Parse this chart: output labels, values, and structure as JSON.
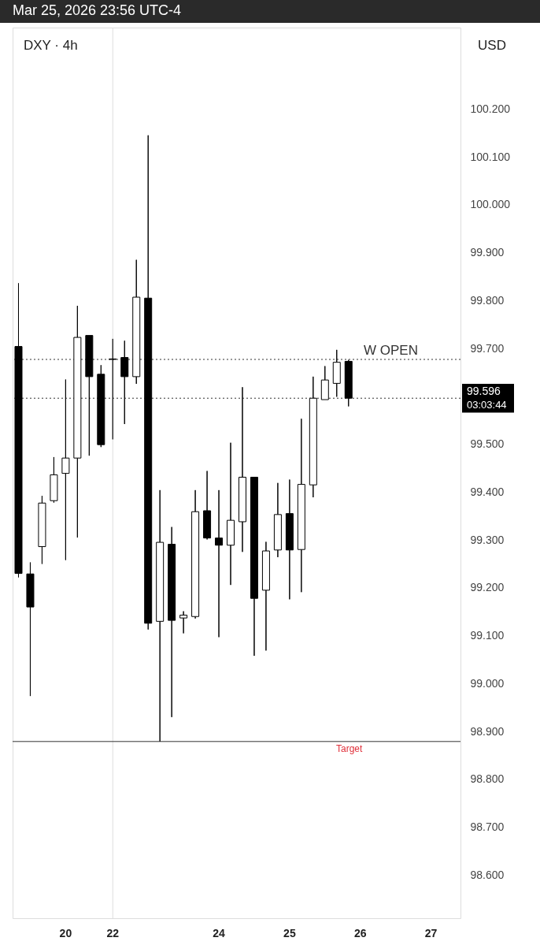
{
  "chart_data": {
    "type": "candlestick",
    "title": "DXY · 4h",
    "categories": [
      null,
      null,
      null,
      null,
      "20",
      null,
      null,
      null,
      "22",
      null,
      null,
      null,
      null,
      null,
      null,
      null,
      null,
      "24",
      null,
      null,
      null,
      null,
      null,
      "25",
      null,
      null,
      null,
      null,
      null,
      "26",
      null,
      null,
      null,
      null,
      null,
      "27",
      null,
      null
    ],
    "ohlc": [
      [
        99.704,
        99.836,
        99.222,
        99.23
      ],
      [
        99.229,
        99.253,
        98.974,
        99.16
      ],
      [
        99.286,
        99.392,
        99.25,
        99.377
      ],
      [
        99.382,
        99.473,
        99.378,
        99.436
      ],
      [
        99.439,
        99.635,
        99.258,
        99.471
      ],
      [
        99.471,
        99.789,
        99.305,
        99.723
      ],
      [
        99.727,
        99.727,
        99.476,
        99.641
      ],
      [
        99.646,
        99.665,
        99.494,
        99.499
      ],
      [
        99.678,
        99.72,
        99.51,
        99.677
      ],
      [
        99.681,
        99.716,
        99.542,
        99.641
      ],
      [
        99.641,
        99.885,
        99.626,
        99.807
      ],
      [
        99.805,
        100.145,
        99.113,
        99.126
      ],
      [
        99.13,
        99.404,
        98.879,
        99.295
      ],
      [
        99.291,
        99.327,
        98.93,
        99.132
      ],
      [
        99.137,
        99.151,
        99.105,
        99.143
      ],
      [
        99.14,
        99.404,
        99.136,
        99.359
      ],
      [
        99.361,
        99.444,
        99.301,
        99.304
      ],
      [
        99.304,
        99.404,
        99.097,
        99.289
      ],
      [
        99.289,
        99.503,
        99.206,
        99.341
      ],
      [
        99.338,
        99.619,
        99.275,
        99.431
      ],
      [
        99.431,
        99.431,
        99.058,
        99.178
      ],
      [
        99.195,
        99.296,
        99.069,
        99.277
      ],
      [
        99.279,
        99.419,
        99.264,
        99.353
      ],
      [
        99.355,
        99.426,
        99.176,
        99.279
      ],
      [
        99.28,
        99.553,
        99.191,
        99.416
      ],
      [
        99.415,
        99.641,
        99.389,
        99.596
      ],
      [
        99.593,
        99.663,
        99.593,
        99.634
      ],
      [
        99.627,
        99.697,
        99.599,
        99.671
      ],
      [
        99.673,
        99.676,
        99.579,
        99.596
      ],
      null,
      null,
      null,
      null,
      null,
      null,
      null,
      null,
      null
    ],
    "ylim": [
      98.51,
      100.37
    ],
    "yticks": [
      {
        "value": 98.6,
        "label": "98.600"
      },
      {
        "value": 98.7,
        "label": "98.700"
      },
      {
        "value": 98.8,
        "label": "98.800"
      },
      {
        "value": 98.9,
        "label": "98.900"
      },
      {
        "value": 99.0,
        "label": "99.000"
      },
      {
        "value": 99.1,
        "label": "99.100"
      },
      {
        "value": 99.2,
        "label": "99.200"
      },
      {
        "value": 99.3,
        "label": "99.300"
      },
      {
        "value": 99.4,
        "label": "99.400"
      },
      {
        "value": 99.5,
        "label": "99.500"
      },
      {
        "value": 99.7,
        "label": "99.700"
      },
      {
        "value": 99.8,
        "label": "99.800"
      },
      {
        "value": 99.9,
        "label": "99.900"
      },
      {
        "value": 100.0,
        "label": "100.000"
      },
      {
        "value": 100.1,
        "label": "100.100"
      },
      {
        "value": 100.2,
        "label": "100.200"
      }
    ],
    "ref_lines": [
      {
        "axis": "x",
        "value": "22",
        "color": "#dddddd"
      },
      {
        "axis": "y",
        "value": 99.677,
        "label": "W OPEN",
        "color": "#333333",
        "line_style": "dotted"
      },
      {
        "axis": "y",
        "value": 99.596,
        "label": "99.596",
        "color": "#333333",
        "line_style": "dotted"
      },
      {
        "axis": "y",
        "value": 98.879,
        "label": "Target",
        "color": "#333333",
        "line_style": "solid"
      }
    ],
    "annotations": [
      "Mar 25, 2026 23:56 UTC-4",
      "USD",
      "03:03:44"
    ]
  }
}
